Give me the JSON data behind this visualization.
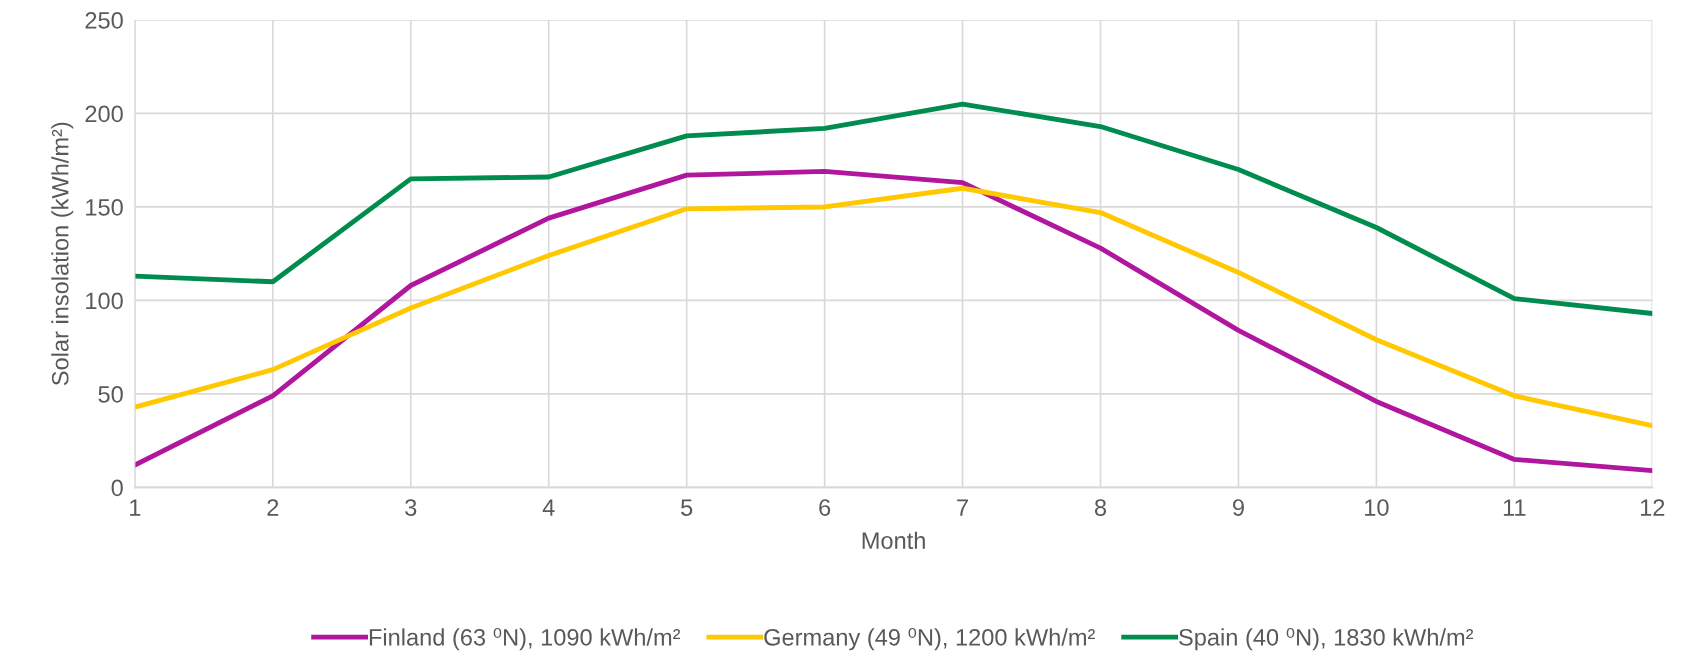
{
  "chart_data": {
    "type": "line",
    "xlabel": "Month",
    "ylabel": "Solar insolation (kWh/m²)",
    "x": [
      1,
      2,
      3,
      4,
      5,
      6,
      7,
      8,
      9,
      10,
      11,
      12
    ],
    "xlim": [
      1,
      12
    ],
    "xticks": [
      1,
      2,
      3,
      4,
      5,
      6,
      7,
      8,
      9,
      10,
      11,
      12
    ],
    "ylim": [
      0,
      250
    ],
    "yticks": [
      0,
      50,
      100,
      150,
      200,
      250
    ],
    "grid": true,
    "legend": "bottom",
    "marker": "none",
    "line_style": "solid",
    "series": [
      {
        "name": "Finland (63 ⁰N), 1090 kWh/m²",
        "color": "#b0169e",
        "values": [
          12,
          49,
          108,
          144,
          167,
          169,
          163,
          128,
          84,
          46,
          15,
          9
        ]
      },
      {
        "name": "Germany (49 ⁰N), 1200 kWh/m²",
        "color": "#ffc800",
        "values": [
          43,
          63,
          96,
          124,
          149,
          150,
          160,
          147,
          115,
          79,
          49,
          33
        ]
      },
      {
        "name": "Spain (40 ⁰N), 1830 kWh/m²",
        "color": "#008c4f",
        "values": [
          113,
          110,
          165,
          166,
          188,
          192,
          205,
          193,
          170,
          139,
          101,
          93
        ]
      }
    ]
  }
}
